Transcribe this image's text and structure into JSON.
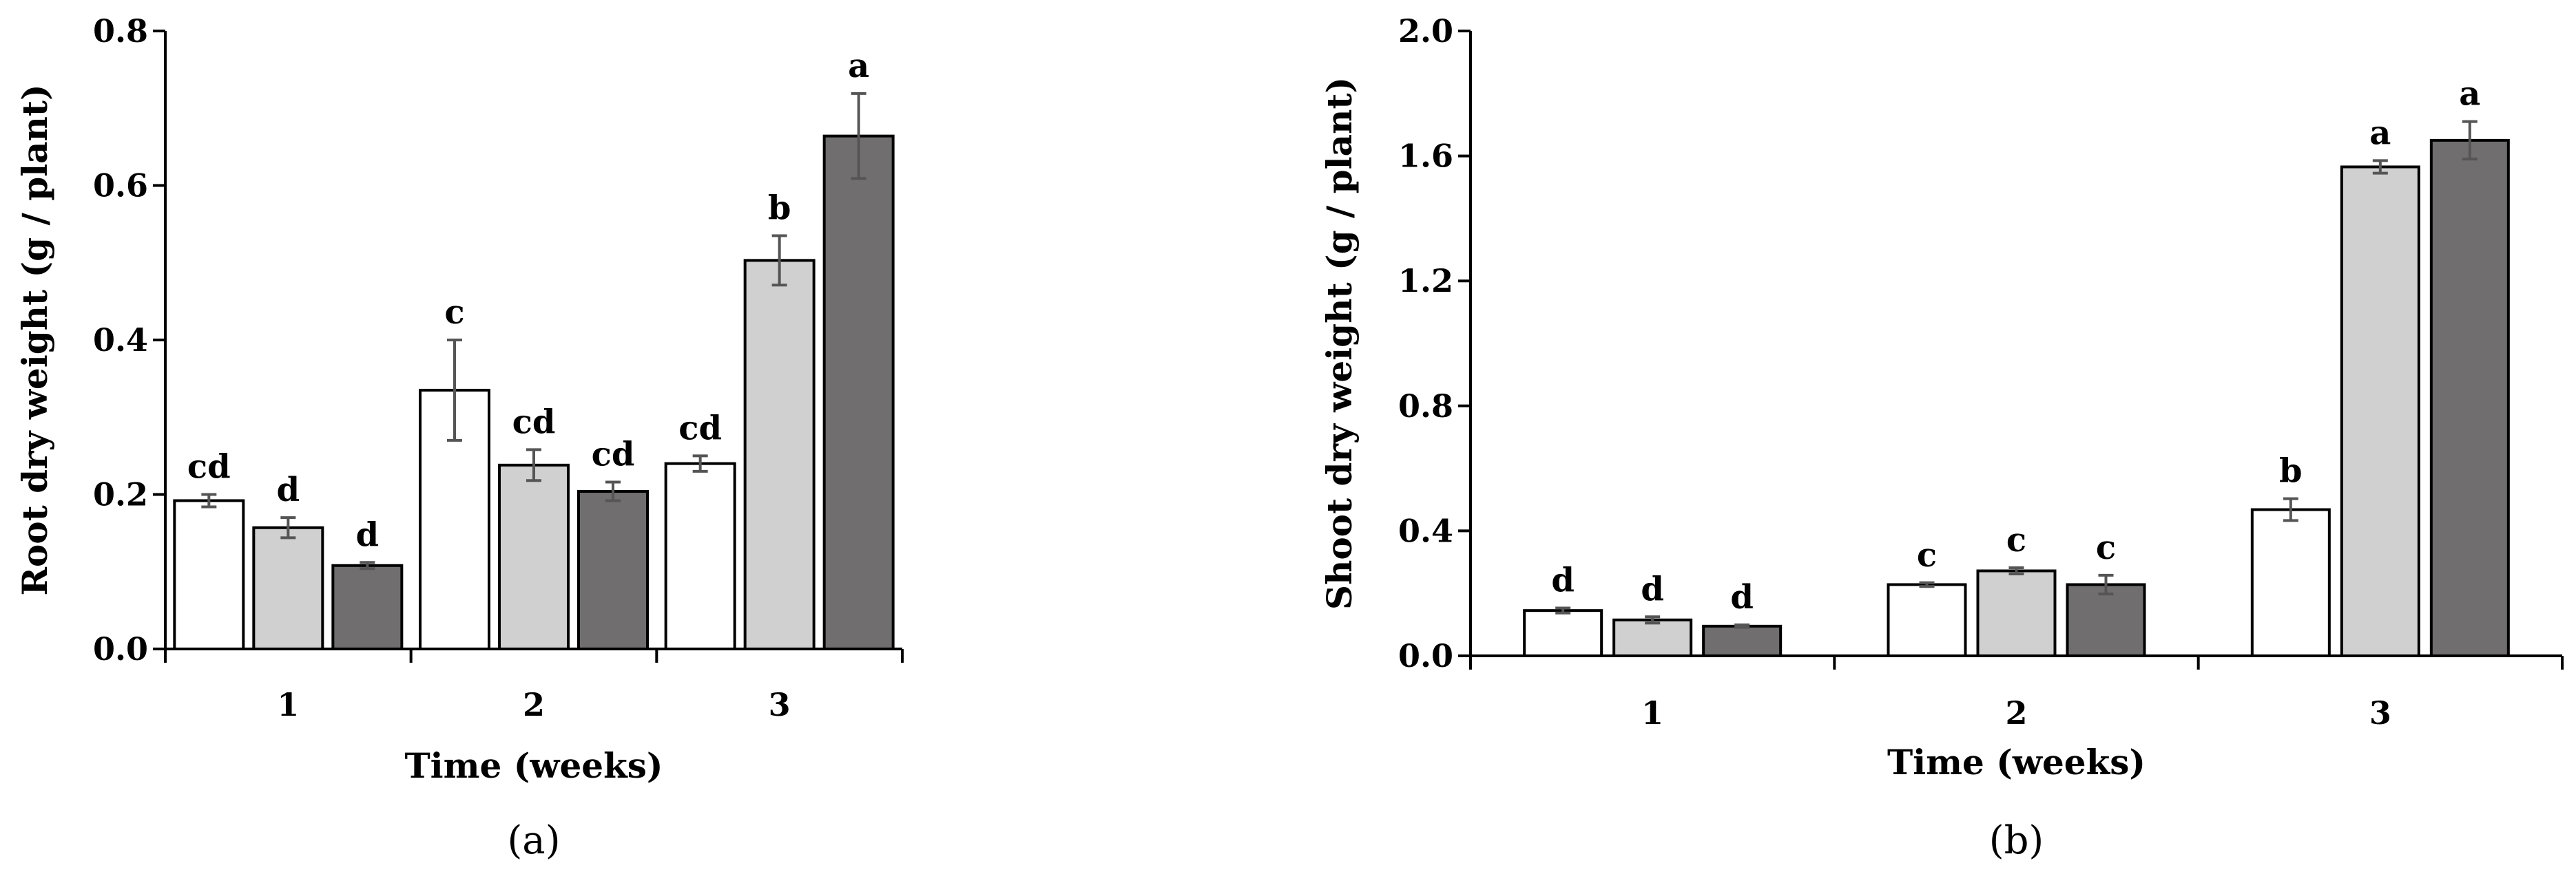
{
  "colors": {
    "series": [
      "#ffffff",
      "#d0d0d0",
      "#706e6e"
    ],
    "bar_stroke": "#000000",
    "error_bar": "#555555"
  },
  "chart_data": [
    {
      "type": "bar",
      "panel_label": "(a)",
      "xlabel": "Time (weeks)",
      "ylabel": "Root dry weight (g / plant)",
      "categories": [
        "1",
        "2",
        "3"
      ],
      "ylim": [
        0,
        0.8
      ],
      "yticks": [
        "0.0",
        "0.2",
        "0.4",
        "0.6",
        "0.8"
      ],
      "grid": false,
      "series": [
        {
          "values": [
            0.192,
            0.335,
            0.24
          ],
          "errors": [
            0.008,
            0.065,
            0.01
          ],
          "letters": [
            "cd",
            "c",
            "cd"
          ]
        },
        {
          "values": [
            0.157,
            0.238,
            0.503
          ],
          "errors": [
            0.013,
            0.02,
            0.032
          ],
          "letters": [
            "d",
            "cd",
            "b"
          ]
        },
        {
          "values": [
            0.108,
            0.204,
            0.664
          ],
          "errors": [
            0.004,
            0.012,
            0.055
          ],
          "letters": [
            "d",
            "cd",
            "a"
          ]
        }
      ]
    },
    {
      "type": "bar",
      "panel_label": "(b)",
      "xlabel": "Time (weeks)",
      "ylabel": "Shoot dry weight (g / plant)",
      "categories": [
        "1",
        "2",
        "3"
      ],
      "ylim": [
        0,
        2.0
      ],
      "yticks": [
        "0.0",
        "0.4",
        "0.8",
        "1.2",
        "1.6",
        "2.0"
      ],
      "grid": false,
      "series": [
        {
          "values": [
            0.145,
            0.228,
            0.468
          ],
          "errors": [
            0.008,
            0.006,
            0.035
          ],
          "letters": [
            "d",
            "c",
            "b"
          ]
        },
        {
          "values": [
            0.115,
            0.272,
            1.565
          ],
          "errors": [
            0.01,
            0.01,
            0.02
          ],
          "letters": [
            "d",
            "c",
            "a"
          ]
        },
        {
          "values": [
            0.095,
            0.228,
            1.65
          ],
          "errors": [
            0.004,
            0.03,
            0.06
          ],
          "letters": [
            "d",
            "c",
            "a"
          ]
        }
      ]
    }
  ]
}
